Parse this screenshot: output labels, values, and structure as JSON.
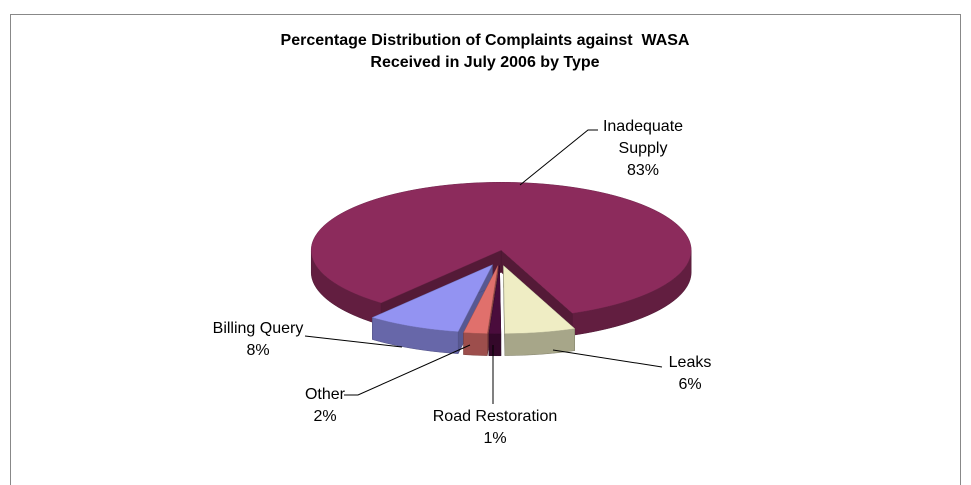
{
  "chart_data": {
    "type": "pie",
    "title": [
      "Percentage Distribution of Complaints against  WASA",
      "Received in July 2006 by Type"
    ],
    "categories": [
      "Leaks",
      "Road Restoration",
      "Other",
      "Billing Query",
      "Inadequate Supply"
    ],
    "values": [
      6,
      1,
      2,
      8,
      83
    ],
    "value_labels": [
      "6%",
      "1%",
      "2%",
      "8%",
      "83%"
    ],
    "colors": [
      "#efedc4",
      "#4a0c3c",
      "#e0706c",
      "#9393f2",
      "#8c2b5c"
    ]
  }
}
